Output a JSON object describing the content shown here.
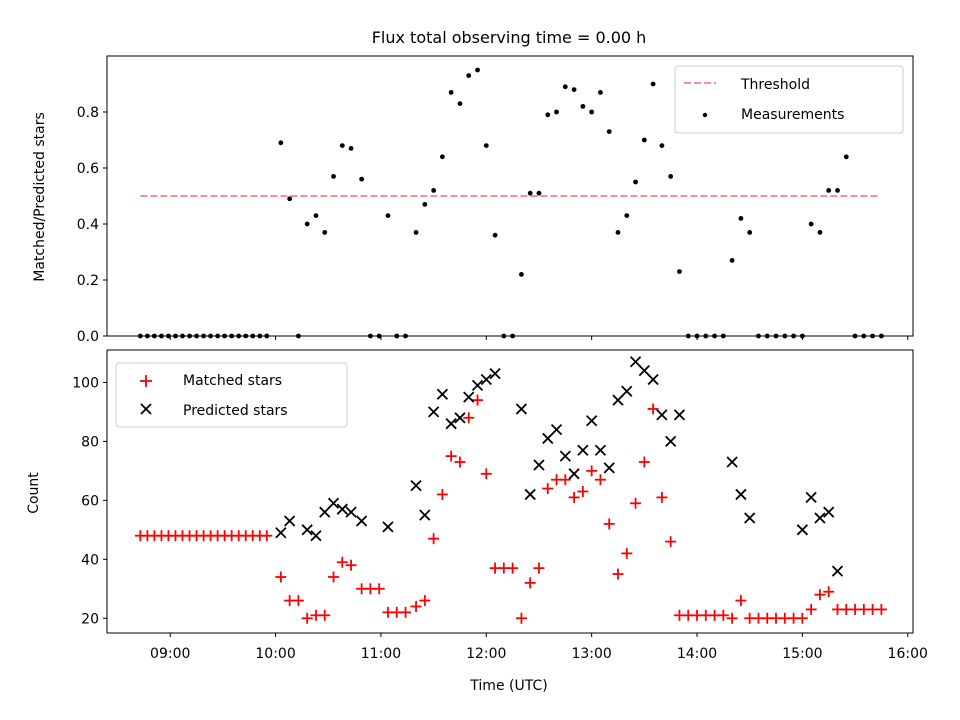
{
  "title": "Flux total observing time = 0.00 h",
  "chart_data": [
    {
      "type": "scatter",
      "title": "Flux total observing time = 0.00 h",
      "xlabel": "",
      "ylabel": "Matched/Predicted stars",
      "xlim": [
        "08:24",
        "16:03"
      ],
      "ylim": [
        0,
        1.0
      ],
      "yticks": [
        0.0,
        0.2,
        0.4,
        0.6,
        0.8
      ],
      "ytick_labels": [
        "0.0",
        "0.2",
        "0.4",
        "0.6",
        "0.8"
      ],
      "legend_position": "top-right",
      "legend": [
        {
          "label": "Threshold",
          "style": "dashed-line",
          "color": "#ff7f7f"
        },
        {
          "label": "Measurements",
          "style": "dot",
          "color": "#000000"
        }
      ],
      "threshold": {
        "value": 0.5,
        "x_start": "08:43",
        "x_end": "15:43"
      },
      "series": [
        {
          "name": "Measurements",
          "color": "#000000",
          "points": [
            [
              "08:43",
              0
            ],
            [
              "08:47",
              0
            ],
            [
              "08:51",
              0
            ],
            [
              "08:55",
              0
            ],
            [
              "08:59",
              0
            ],
            [
              "09:03",
              0
            ],
            [
              "09:07",
              0
            ],
            [
              "09:11",
              0
            ],
            [
              "09:15",
              0
            ],
            [
              "09:19",
              0
            ],
            [
              "09:23",
              0
            ],
            [
              "09:27",
              0
            ],
            [
              "09:31",
              0
            ],
            [
              "09:35",
              0
            ],
            [
              "09:39",
              0
            ],
            [
              "09:43",
              0
            ],
            [
              "09:47",
              0
            ],
            [
              "09:51",
              0
            ],
            [
              "09:55",
              0
            ],
            [
              "10:03",
              0.69
            ],
            [
              "10:08",
              0.49
            ],
            [
              "10:13",
              0
            ],
            [
              "10:18",
              0.4
            ],
            [
              "10:23",
              0.43
            ],
            [
              "10:28",
              0.37
            ],
            [
              "10:33",
              0.57
            ],
            [
              "10:38",
              0.68
            ],
            [
              "10:43",
              0.67
            ],
            [
              "10:49",
              0.56
            ],
            [
              "10:54",
              0
            ],
            [
              "10:59",
              0
            ],
            [
              "11:04",
              0.43
            ],
            [
              "11:09",
              0
            ],
            [
              "11:14",
              0
            ],
            [
              "11:20",
              0.37
            ],
            [
              "11:25",
              0.47
            ],
            [
              "11:30",
              0.52
            ],
            [
              "11:35",
              0.64
            ],
            [
              "11:40",
              0.87
            ],
            [
              "11:45",
              0.83
            ],
            [
              "11:50",
              0.93
            ],
            [
              "11:55",
              0.95
            ],
            [
              "12:00",
              0.68
            ],
            [
              "12:05",
              0.36
            ],
            [
              "12:10",
              0
            ],
            [
              "12:15",
              0
            ],
            [
              "12:20",
              0.22
            ],
            [
              "12:25",
              0.51
            ],
            [
              "12:30",
              0.51
            ],
            [
              "12:35",
              0.79
            ],
            [
              "12:40",
              0.8
            ],
            [
              "12:45",
              0.89
            ],
            [
              "12:50",
              0.88
            ],
            [
              "12:55",
              0.82
            ],
            [
              "13:00",
              0.8
            ],
            [
              "13:05",
              0.87
            ],
            [
              "13:10",
              0.73
            ],
            [
              "13:15",
              0.37
            ],
            [
              "13:20",
              0.43
            ],
            [
              "13:25",
              0.55
            ],
            [
              "13:30",
              0.7
            ],
            [
              "13:35",
              0.9
            ],
            [
              "13:40",
              0.68
            ],
            [
              "13:45",
              0.57
            ],
            [
              "13:50",
              0.23
            ],
            [
              "13:55",
              0
            ],
            [
              "14:00",
              0
            ],
            [
              "14:05",
              0
            ],
            [
              "14:10",
              0
            ],
            [
              "14:15",
              0
            ],
            [
              "14:20",
              0.27
            ],
            [
              "14:25",
              0.42
            ],
            [
              "14:30",
              0.37
            ],
            [
              "14:35",
              0
            ],
            [
              "14:40",
              0
            ],
            [
              "14:45",
              0
            ],
            [
              "14:50",
              0
            ],
            [
              "14:55",
              0
            ],
            [
              "15:00",
              0
            ],
            [
              "15:05",
              0.4
            ],
            [
              "15:10",
              0.37
            ],
            [
              "15:15",
              0.52
            ],
            [
              "15:20",
              0.52
            ],
            [
              "15:25",
              0.64
            ],
            [
              "15:30",
              0
            ],
            [
              "15:35",
              0
            ],
            [
              "15:40",
              0
            ],
            [
              "15:45",
              0
            ]
          ]
        }
      ]
    },
    {
      "type": "scatter",
      "title": "",
      "xlabel": "Time (UTC)",
      "ylabel": "Count",
      "xlim": [
        "08:24",
        "16:03"
      ],
      "ylim": [
        15,
        111
      ],
      "yticks": [
        20,
        40,
        60,
        80,
        100
      ],
      "ytick_labels": [
        "20",
        "40",
        "60",
        "80",
        "100"
      ],
      "xticks": [
        "09:00",
        "10:00",
        "11:00",
        "12:00",
        "13:00",
        "14:00",
        "15:00",
        "16:00"
      ],
      "xtick_labels": [
        "09:00",
        "10:00",
        "11:00",
        "12:00",
        "13:00",
        "14:00",
        "15:00",
        "16:00"
      ],
      "legend_position": "top-left",
      "legend": [
        {
          "label": "Matched stars",
          "style": "plus",
          "color": "#ff0000"
        },
        {
          "label": "Predicted stars",
          "style": "x",
          "color": "#000000"
        }
      ],
      "series": [
        {
          "name": "Matched stars",
          "color": "#ff0000",
          "marker": "plus",
          "points": [
            [
              "08:43",
              48
            ],
            [
              "08:47",
              48
            ],
            [
              "08:51",
              48
            ],
            [
              "08:55",
              48
            ],
            [
              "08:59",
              48
            ],
            [
              "09:03",
              48
            ],
            [
              "09:07",
              48
            ],
            [
              "09:11",
              48
            ],
            [
              "09:15",
              48
            ],
            [
              "09:19",
              48
            ],
            [
              "09:23",
              48
            ],
            [
              "09:27",
              48
            ],
            [
              "09:31",
              48
            ],
            [
              "09:35",
              48
            ],
            [
              "09:39",
              48
            ],
            [
              "09:43",
              48
            ],
            [
              "09:47",
              48
            ],
            [
              "09:51",
              48
            ],
            [
              "09:55",
              48
            ],
            [
              "10:03",
              34
            ],
            [
              "10:08",
              26
            ],
            [
              "10:13",
              26
            ],
            [
              "10:18",
              20
            ],
            [
              "10:23",
              21
            ],
            [
              "10:28",
              21
            ],
            [
              "10:33",
              34
            ],
            [
              "10:38",
              39
            ],
            [
              "10:43",
              38
            ],
            [
              "10:49",
              30
            ],
            [
              "10:54",
              30
            ],
            [
              "10:59",
              30
            ],
            [
              "11:04",
              22
            ],
            [
              "11:09",
              22
            ],
            [
              "11:14",
              22
            ],
            [
              "11:20",
              24
            ],
            [
              "11:25",
              26
            ],
            [
              "11:30",
              47
            ],
            [
              "11:35",
              62
            ],
            [
              "11:40",
              75
            ],
            [
              "11:45",
              73
            ],
            [
              "11:50",
              88
            ],
            [
              "11:55",
              94
            ],
            [
              "12:00",
              69
            ],
            [
              "12:05",
              37
            ],
            [
              "12:10",
              37
            ],
            [
              "12:15",
              37
            ],
            [
              "12:20",
              20
            ],
            [
              "12:25",
              32
            ],
            [
              "12:30",
              37
            ],
            [
              "12:35",
              64
            ],
            [
              "12:40",
              67
            ],
            [
              "12:45",
              67
            ],
            [
              "12:50",
              61
            ],
            [
              "12:55",
              63
            ],
            [
              "13:00",
              70
            ],
            [
              "13:05",
              67
            ],
            [
              "13:10",
              52
            ],
            [
              "13:15",
              35
            ],
            [
              "13:20",
              42
            ],
            [
              "13:25",
              59
            ],
            [
              "13:30",
              73
            ],
            [
              "13:35",
              91
            ],
            [
              "13:40",
              61
            ],
            [
              "13:45",
              46
            ],
            [
              "13:50",
              21
            ],
            [
              "13:55",
              21
            ],
            [
              "14:00",
              21
            ],
            [
              "14:05",
              21
            ],
            [
              "14:10",
              21
            ],
            [
              "14:15",
              21
            ],
            [
              "14:20",
              20
            ],
            [
              "14:25",
              26
            ],
            [
              "14:30",
              20
            ],
            [
              "14:35",
              20
            ],
            [
              "14:40",
              20
            ],
            [
              "14:45",
              20
            ],
            [
              "14:50",
              20
            ],
            [
              "14:55",
              20
            ],
            [
              "15:00",
              20
            ],
            [
              "15:05",
              23
            ],
            [
              "15:10",
              28
            ],
            [
              "15:15",
              29
            ],
            [
              "15:20",
              23
            ],
            [
              "15:25",
              23
            ],
            [
              "15:30",
              23
            ],
            [
              "15:35",
              23
            ],
            [
              "15:40",
              23
            ],
            [
              "15:45",
              23
            ]
          ]
        },
        {
          "name": "Predicted stars",
          "color": "#000000",
          "marker": "x",
          "points": [
            [
              "10:03",
              49
            ],
            [
              "10:08",
              53
            ],
            [
              "10:18",
              50
            ],
            [
              "10:23",
              48
            ],
            [
              "10:28",
              56
            ],
            [
              "10:33",
              59
            ],
            [
              "10:38",
              57
            ],
            [
              "10:43",
              56
            ],
            [
              "10:49",
              53
            ],
            [
              "11:04",
              51
            ],
            [
              "11:20",
              65
            ],
            [
              "11:25",
              55
            ],
            [
              "11:30",
              90
            ],
            [
              "11:35",
              96
            ],
            [
              "11:40",
              86
            ],
            [
              "11:45",
              88
            ],
            [
              "11:50",
              95
            ],
            [
              "11:55",
              99
            ],
            [
              "12:00",
              101
            ],
            [
              "12:05",
              103
            ],
            [
              "12:20",
              91
            ],
            [
              "12:25",
              62
            ],
            [
              "12:30",
              72
            ],
            [
              "12:35",
              81
            ],
            [
              "12:40",
              84
            ],
            [
              "12:45",
              75
            ],
            [
              "12:50",
              69
            ],
            [
              "12:55",
              77
            ],
            [
              "13:00",
              87
            ],
            [
              "13:05",
              77
            ],
            [
              "13:10",
              71
            ],
            [
              "13:15",
              94
            ],
            [
              "13:20",
              97
            ],
            [
              "13:25",
              107
            ],
            [
              "13:30",
              104
            ],
            [
              "13:35",
              101
            ],
            [
              "13:40",
              89
            ],
            [
              "13:45",
              80
            ],
            [
              "13:50",
              89
            ],
            [
              "14:20",
              73
            ],
            [
              "14:25",
              62
            ],
            [
              "14:30",
              54
            ],
            [
              "15:00",
              50
            ],
            [
              "15:05",
              61
            ],
            [
              "15:10",
              54
            ],
            [
              "15:15",
              56
            ],
            [
              "15:20",
              36
            ]
          ]
        }
      ]
    }
  ]
}
